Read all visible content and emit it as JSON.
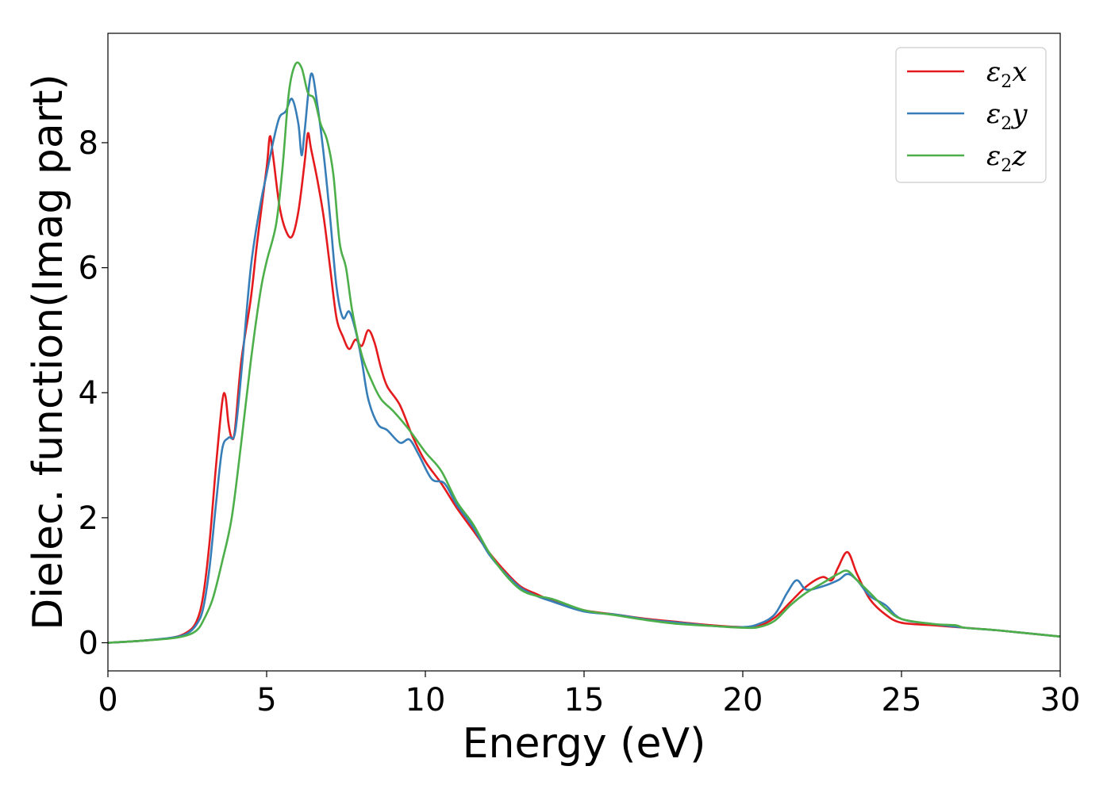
{
  "chart_data": {
    "type": "line",
    "title": "",
    "xlabel": "Energy (eV)",
    "ylabel": "Dielec. function(Imag part)",
    "xlim": [
      0,
      30
    ],
    "ylim": [
      -0.45,
      9.75
    ],
    "xticks": [
      0,
      5,
      10,
      15,
      20,
      25,
      30
    ],
    "xtick_labels": [
      "0",
      "5",
      "10",
      "15",
      "20",
      "25",
      "30"
    ],
    "yticks": [
      0,
      2,
      4,
      6,
      8
    ],
    "ytick_labels": [
      "0",
      "2",
      "4",
      "6",
      "8"
    ],
    "grid": false,
    "legend_position": "top-right",
    "series": [
      {
        "symbol": "ε",
        "subscript": "2",
        "suffix": "x",
        "color": "#e41a1c",
        "points": [
          [
            0,
            0.0
          ],
          [
            1,
            0.03
          ],
          [
            2,
            0.08
          ],
          [
            2.5,
            0.17
          ],
          [
            2.8,
            0.35
          ],
          [
            3.0,
            0.75
          ],
          [
            3.2,
            1.6
          ],
          [
            3.4,
            2.8
          ],
          [
            3.6,
            3.85
          ],
          [
            3.7,
            3.95
          ],
          [
            3.8,
            3.5
          ],
          [
            3.9,
            3.28
          ],
          [
            4.0,
            3.4
          ],
          [
            4.2,
            4.5
          ],
          [
            4.5,
            5.5
          ],
          [
            4.7,
            6.4
          ],
          [
            5.0,
            7.6
          ],
          [
            5.1,
            8.1
          ],
          [
            5.2,
            7.8
          ],
          [
            5.4,
            7.0
          ],
          [
            5.6,
            6.6
          ],
          [
            5.8,
            6.5
          ],
          [
            6.0,
            6.9
          ],
          [
            6.2,
            7.7
          ],
          [
            6.3,
            8.15
          ],
          [
            6.4,
            7.9
          ],
          [
            6.6,
            7.4
          ],
          [
            6.8,
            6.8
          ],
          [
            7.0,
            6.0
          ],
          [
            7.2,
            5.2
          ],
          [
            7.4,
            4.9
          ],
          [
            7.6,
            4.7
          ],
          [
            7.8,
            4.85
          ],
          [
            8.0,
            4.75
          ],
          [
            8.2,
            5.0
          ],
          [
            8.4,
            4.8
          ],
          [
            8.6,
            4.4
          ],
          [
            8.8,
            4.1
          ],
          [
            9.2,
            3.8
          ],
          [
            9.6,
            3.3
          ],
          [
            10.0,
            2.9
          ],
          [
            10.5,
            2.55
          ],
          [
            11.0,
            2.15
          ],
          [
            11.5,
            1.8
          ],
          [
            12.0,
            1.45
          ],
          [
            12.5,
            1.15
          ],
          [
            13.0,
            0.9
          ],
          [
            13.5,
            0.78
          ],
          [
            14.0,
            0.67
          ],
          [
            15.0,
            0.52
          ],
          [
            16.0,
            0.45
          ],
          [
            17.0,
            0.38
          ],
          [
            18.0,
            0.33
          ],
          [
            19.0,
            0.28
          ],
          [
            20.0,
            0.25
          ],
          [
            20.5,
            0.27
          ],
          [
            21.0,
            0.4
          ],
          [
            21.5,
            0.65
          ],
          [
            22.0,
            0.9
          ],
          [
            22.5,
            1.05
          ],
          [
            22.8,
            1.0
          ],
          [
            23.0,
            1.2
          ],
          [
            23.3,
            1.45
          ],
          [
            23.6,
            1.1
          ],
          [
            24.0,
            0.7
          ],
          [
            24.5,
            0.45
          ],
          [
            25.0,
            0.32
          ],
          [
            26.0,
            0.28
          ],
          [
            27.0,
            0.24
          ],
          [
            28.0,
            0.2
          ],
          [
            29.0,
            0.15
          ],
          [
            30.0,
            0.1
          ]
        ]
      },
      {
        "symbol": "ε",
        "subscript": "2",
        "suffix": "y",
        "color": "#377eb8",
        "points": [
          [
            0,
            0.0
          ],
          [
            1,
            0.03
          ],
          [
            2,
            0.08
          ],
          [
            2.5,
            0.15
          ],
          [
            2.8,
            0.3
          ],
          [
            3.0,
            0.55
          ],
          [
            3.2,
            1.2
          ],
          [
            3.4,
            2.2
          ],
          [
            3.6,
            3.1
          ],
          [
            3.8,
            3.28
          ],
          [
            4.0,
            3.35
          ],
          [
            4.2,
            4.3
          ],
          [
            4.5,
            6.0
          ],
          [
            4.8,
            7.0
          ],
          [
            5.0,
            7.5
          ],
          [
            5.2,
            8.0
          ],
          [
            5.4,
            8.4
          ],
          [
            5.6,
            8.5
          ],
          [
            5.8,
            8.7
          ],
          [
            6.0,
            8.3
          ],
          [
            6.1,
            7.8
          ],
          [
            6.2,
            8.2
          ],
          [
            6.4,
            9.1
          ],
          [
            6.6,
            8.6
          ],
          [
            6.8,
            7.8
          ],
          [
            7.0,
            6.8
          ],
          [
            7.2,
            5.7
          ],
          [
            7.4,
            5.2
          ],
          [
            7.6,
            5.3
          ],
          [
            7.8,
            5.0
          ],
          [
            8.0,
            4.5
          ],
          [
            8.2,
            3.9
          ],
          [
            8.5,
            3.5
          ],
          [
            8.8,
            3.4
          ],
          [
            9.2,
            3.2
          ],
          [
            9.5,
            3.25
          ],
          [
            9.8,
            3.0
          ],
          [
            10.2,
            2.62
          ],
          [
            10.6,
            2.55
          ],
          [
            11.0,
            2.2
          ],
          [
            11.5,
            1.85
          ],
          [
            12.0,
            1.42
          ],
          [
            12.5,
            1.12
          ],
          [
            13.0,
            0.88
          ],
          [
            13.5,
            0.75
          ],
          [
            14.0,
            0.66
          ],
          [
            15.0,
            0.5
          ],
          [
            16.0,
            0.45
          ],
          [
            17.0,
            0.37
          ],
          [
            18.0,
            0.32
          ],
          [
            19.0,
            0.27
          ],
          [
            20.0,
            0.25
          ],
          [
            20.5,
            0.3
          ],
          [
            21.0,
            0.45
          ],
          [
            21.4,
            0.8
          ],
          [
            21.7,
            1.0
          ],
          [
            22.0,
            0.85
          ],
          [
            22.5,
            0.9
          ],
          [
            23.0,
            1.0
          ],
          [
            23.3,
            1.1
          ],
          [
            23.6,
            1.0
          ],
          [
            24.0,
            0.75
          ],
          [
            24.5,
            0.6
          ],
          [
            25.0,
            0.38
          ],
          [
            26.0,
            0.3
          ],
          [
            27.0,
            0.24
          ],
          [
            28.0,
            0.2
          ],
          [
            29.0,
            0.15
          ],
          [
            30.0,
            0.1
          ]
        ]
      },
      {
        "symbol": "ε",
        "subscript": "2",
        "suffix": "z",
        "color": "#4daf4a",
        "points": [
          [
            0,
            0.0
          ],
          [
            1,
            0.03
          ],
          [
            2,
            0.07
          ],
          [
            2.5,
            0.12
          ],
          [
            2.8,
            0.2
          ],
          [
            3.0,
            0.35
          ],
          [
            3.3,
            0.7
          ],
          [
            3.6,
            1.3
          ],
          [
            3.9,
            2.0
          ],
          [
            4.2,
            3.2
          ],
          [
            4.5,
            4.5
          ],
          [
            4.8,
            5.6
          ],
          [
            5.0,
            6.1
          ],
          [
            5.3,
            6.7
          ],
          [
            5.5,
            7.6
          ],
          [
            5.7,
            8.8
          ],
          [
            5.9,
            9.25
          ],
          [
            6.1,
            9.2
          ],
          [
            6.3,
            8.8
          ],
          [
            6.5,
            8.7
          ],
          [
            6.7,
            8.3
          ],
          [
            6.9,
            8.05
          ],
          [
            7.1,
            7.5
          ],
          [
            7.3,
            6.4
          ],
          [
            7.5,
            6.0
          ],
          [
            7.7,
            5.3
          ],
          [
            8.0,
            4.6
          ],
          [
            8.3,
            4.2
          ],
          [
            8.6,
            3.9
          ],
          [
            9.0,
            3.7
          ],
          [
            9.5,
            3.4
          ],
          [
            10.0,
            3.05
          ],
          [
            10.5,
            2.75
          ],
          [
            11.0,
            2.25
          ],
          [
            11.5,
            1.9
          ],
          [
            12.0,
            1.45
          ],
          [
            12.5,
            1.1
          ],
          [
            13.0,
            0.85
          ],
          [
            13.5,
            0.75
          ],
          [
            14.0,
            0.7
          ],
          [
            15.0,
            0.52
          ],
          [
            16.0,
            0.44
          ],
          [
            17.0,
            0.36
          ],
          [
            18.0,
            0.3
          ],
          [
            19.0,
            0.27
          ],
          [
            20.0,
            0.24
          ],
          [
            20.5,
            0.25
          ],
          [
            21.0,
            0.35
          ],
          [
            21.5,
            0.6
          ],
          [
            22.0,
            0.8
          ],
          [
            22.5,
            0.95
          ],
          [
            23.0,
            1.1
          ],
          [
            23.3,
            1.15
          ],
          [
            23.6,
            1.0
          ],
          [
            24.0,
            0.8
          ],
          [
            24.5,
            0.55
          ],
          [
            25.0,
            0.38
          ],
          [
            26.0,
            0.3
          ],
          [
            26.7,
            0.28
          ],
          [
            27.0,
            0.24
          ],
          [
            28.0,
            0.2
          ],
          [
            29.0,
            0.15
          ],
          [
            30.0,
            0.1
          ]
        ]
      }
    ]
  }
}
